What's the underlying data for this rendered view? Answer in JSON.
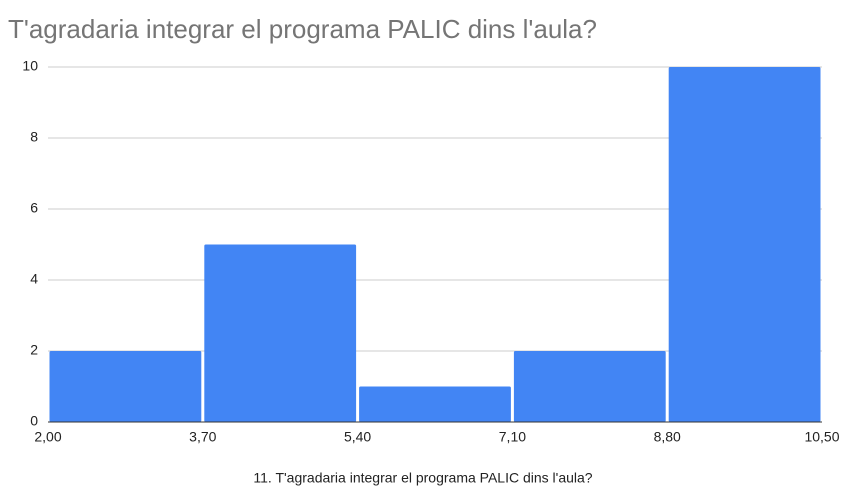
{
  "chart_data": {
    "type": "histogram",
    "title": "T'agradaria integrar el programa PALIC dins l'aula?",
    "x_label": "11. T'agradaria integrar el programa PALIC dins l'aula?",
    "bins": [
      2.0,
      3.7,
      5.4,
      7.1,
      8.8,
      10.5
    ],
    "values": [
      2,
      5,
      1,
      2,
      10
    ],
    "color": "#4285f4",
    "xlim": [
      2.0,
      10.5
    ],
    "xticks": [
      {
        "value": 2.0,
        "label": "2,00"
      },
      {
        "value": 3.7,
        "label": "3,70"
      },
      {
        "value": 5.4,
        "label": "5,40"
      },
      {
        "value": 7.1,
        "label": "7,10"
      },
      {
        "value": 8.8,
        "label": "8,80"
      },
      {
        "value": 10.5,
        "label": "10,50"
      }
    ],
    "ylim": [
      0,
      10
    ],
    "yticks": [
      0,
      2,
      4,
      6,
      8,
      10
    ],
    "grid": true
  }
}
